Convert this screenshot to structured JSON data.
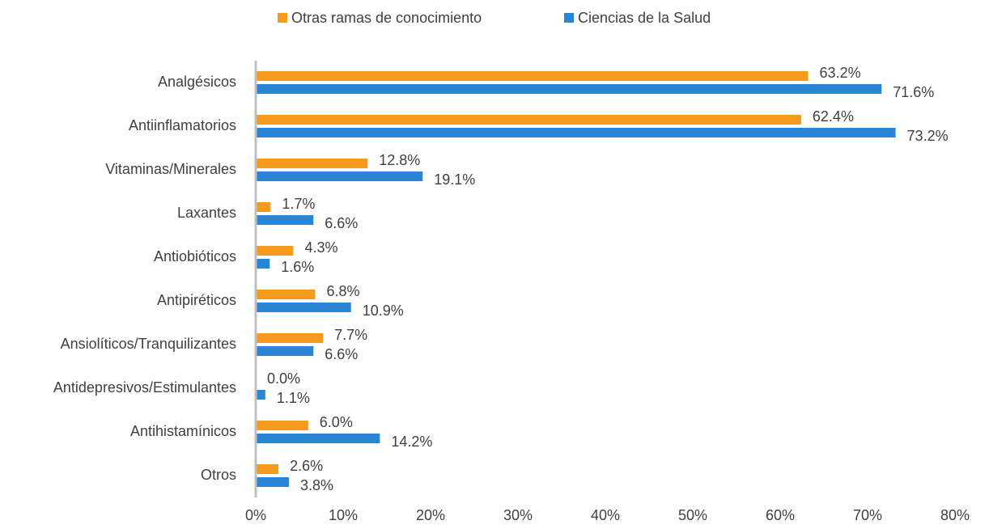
{
  "chart_data": {
    "type": "bar",
    "orientation": "horizontal",
    "categories": [
      "Analgésicos",
      "Antiinflamatorios",
      "Vitaminas/Minerales",
      "Laxantes",
      "Antiobióticos",
      "Antipiréticos",
      "Ansiolíticos/Tranquilizantes",
      "Antidepresivos/Estimulantes",
      "Antihistamínicos",
      "Otros"
    ],
    "series": [
      {
        "name": "Otras ramas de conocimiento",
        "color": "#f59a1c",
        "values": [
          63.2,
          62.4,
          12.8,
          1.7,
          4.3,
          6.8,
          7.7,
          0.0,
          6.0,
          2.6
        ],
        "value_labels": [
          "63.2%",
          "62.4%",
          "12.8%",
          "1.7%",
          "4.3%",
          "6.8%",
          "7.7%",
          "0.0%",
          "6.0%",
          "2.6%"
        ]
      },
      {
        "name": "Ciencias de la Salud",
        "color": "#2b85d6",
        "values": [
          71.6,
          73.2,
          19.1,
          6.6,
          1.6,
          10.9,
          6.6,
          1.1,
          14.2,
          3.8
        ],
        "value_labels": [
          "71.6%",
          "73.2%",
          "19.1%",
          "6.6%",
          "1.6%",
          "10.9%",
          "6.6%",
          "1.1%",
          "14.2%",
          "3.8%"
        ]
      }
    ],
    "xlim": [
      0,
      80
    ],
    "xticks": [
      {
        "value": 0,
        "label": "0%"
      },
      {
        "value": 10,
        "label": "10%"
      },
      {
        "value": 20,
        "label": "20%"
      },
      {
        "value": 30,
        "label": "30%"
      },
      {
        "value": 40,
        "label": "40%"
      },
      {
        "value": 50,
        "label": "50%"
      },
      {
        "value": 60,
        "label": "60%"
      },
      {
        "value": 70,
        "label": "70%"
      },
      {
        "value": 80,
        "label": "80%"
      }
    ],
    "legend": "top",
    "grid": false
  }
}
